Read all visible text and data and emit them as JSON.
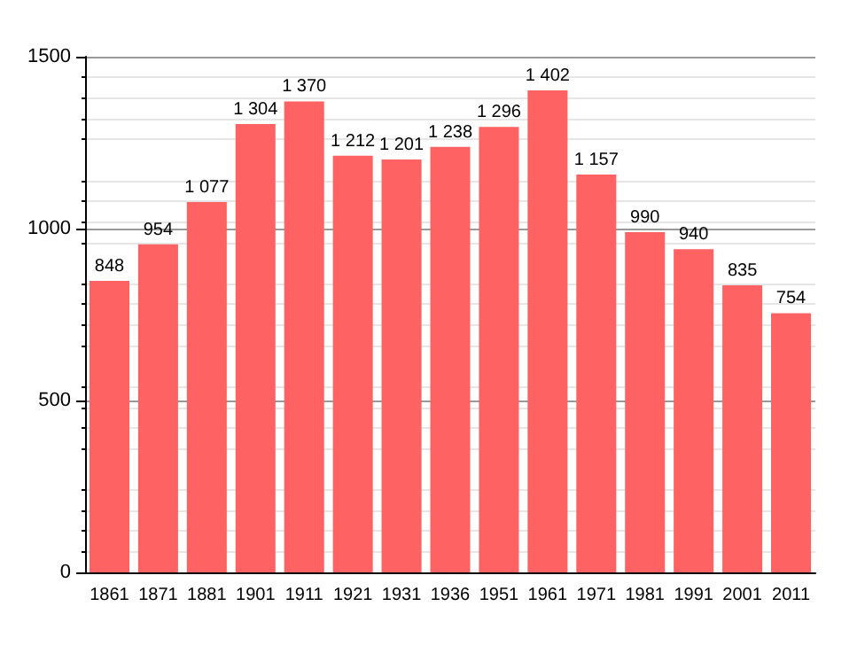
{
  "chart_data": {
    "type": "bar",
    "categories": [
      "1861",
      "1871",
      "1881",
      "1901",
      "1911",
      "1921",
      "1931",
      "1936",
      "1951",
      "1961",
      "1971",
      "1981",
      "1991",
      "2001",
      "2011"
    ],
    "values": [
      848,
      954,
      1077,
      1304,
      1370,
      1212,
      1201,
      1238,
      1296,
      1402,
      1157,
      990,
      940,
      835,
      754
    ],
    "value_labels": [
      "848",
      "954",
      "1 077",
      "1 304",
      "1 370",
      "1 212",
      "1 201",
      "1 238",
      "1 296",
      "1 402",
      "1 157",
      "990",
      "940",
      "835",
      "754"
    ],
    "color": "#ff6262",
    "ylim": [
      0,
      1500
    ],
    "yticks": [
      0,
      500,
      1000,
      1500
    ],
    "grid": "y"
  }
}
